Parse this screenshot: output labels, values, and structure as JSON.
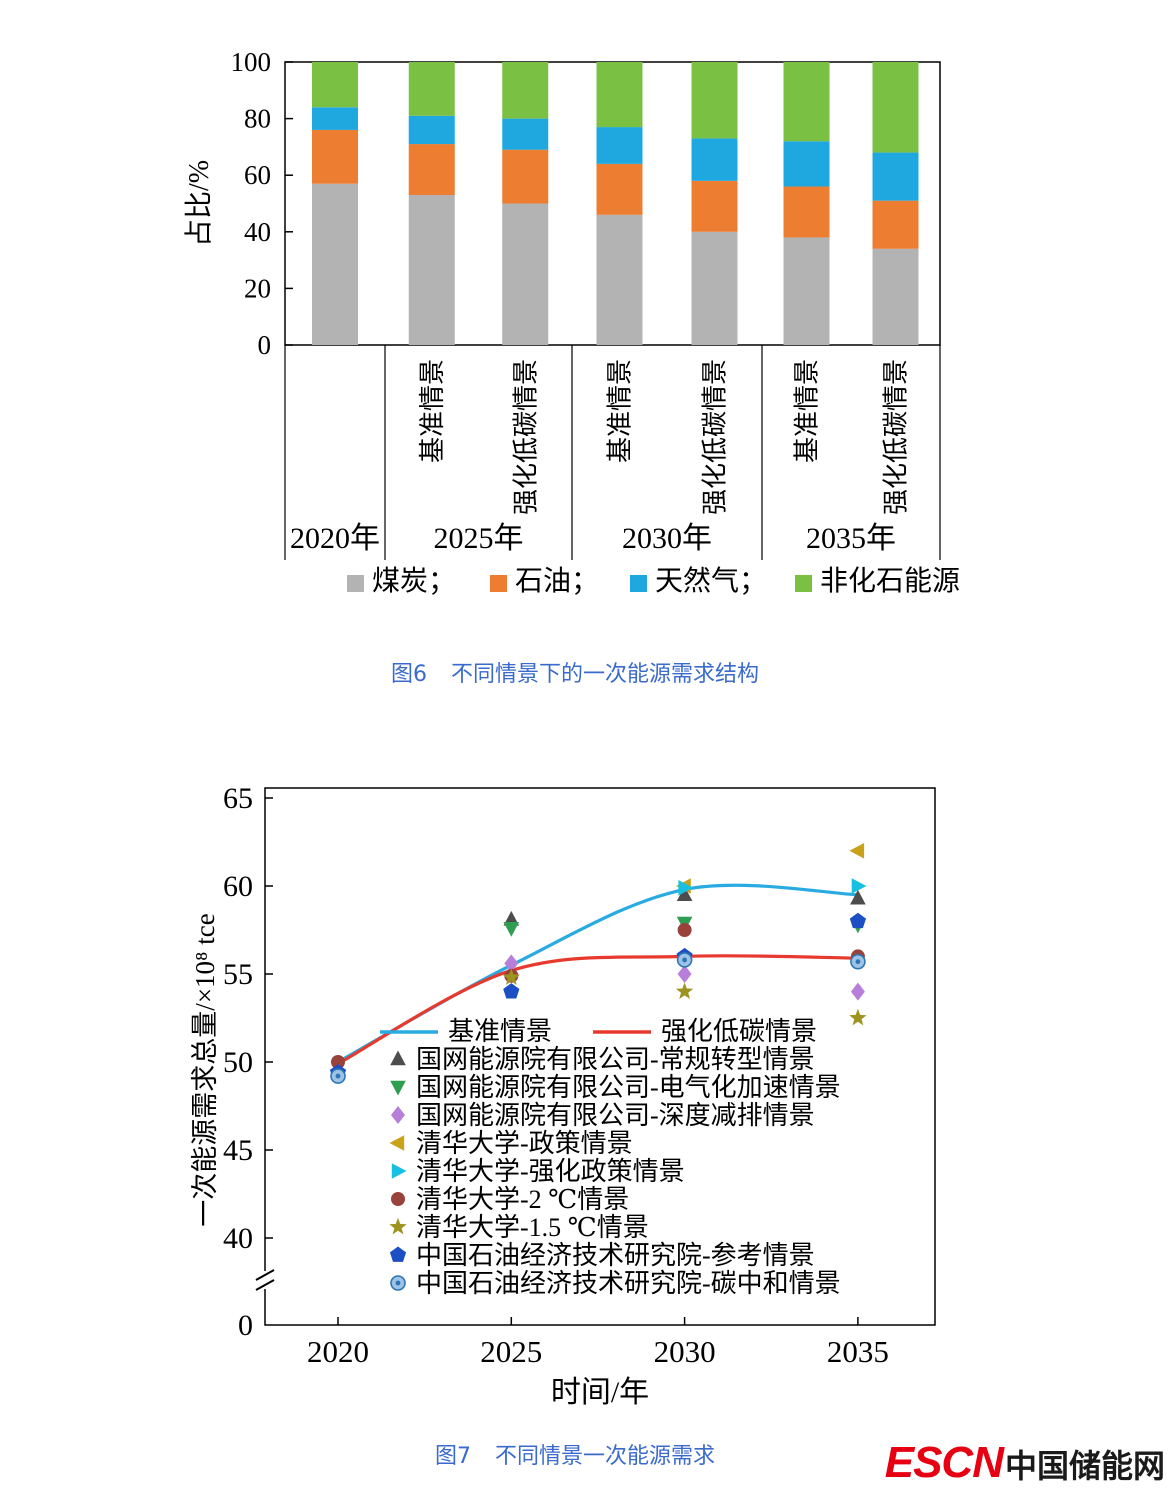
{
  "colors": {
    "caption": "#3a6bcc",
    "axis": "#000000",
    "escn_red": "#e60012",
    "site_text": "#1a1a1a"
  },
  "figure6": {
    "caption_label": "图6",
    "caption_text": "不同情景下的一次能源需求结构",
    "chart_data": {
      "type": "stacked-bar",
      "ylabel": "占比/%",
      "ylim": [
        0,
        100
      ],
      "y_ticks": [
        "0",
        "20",
        "40",
        "60",
        "80",
        "100"
      ],
      "series_names": [
        "煤炭",
        "石油",
        "天然气",
        "非化石能源"
      ],
      "series_colors": [
        "#b3b3b3",
        "#ed7d31",
        "#1fa8e0",
        "#7ac143"
      ],
      "groups": [
        {
          "year": "2020年",
          "bars": [
            {
              "scenario": "",
              "values": [
                57,
                19,
                8,
                16
              ]
            }
          ]
        },
        {
          "year": "2025年",
          "bars": [
            {
              "scenario": "基准情景",
              "values": [
                53,
                18,
                10,
                19
              ]
            },
            {
              "scenario": "强化低碳情景",
              "values": [
                50,
                19,
                11,
                20
              ]
            }
          ]
        },
        {
          "year": "2030年",
          "bars": [
            {
              "scenario": "基准情景",
              "values": [
                46,
                18,
                13,
                23
              ]
            },
            {
              "scenario": "强化低碳情景",
              "values": [
                40,
                18,
                15,
                27
              ]
            }
          ]
        },
        {
          "year": "2035年",
          "bars": [
            {
              "scenario": "基准情景",
              "values": [
                38,
                18,
                16,
                28
              ]
            },
            {
              "scenario": "强化低碳情景",
              "values": [
                34,
                17,
                17,
                32
              ]
            }
          ]
        }
      ],
      "legend": [
        {
          "label": "煤炭；",
          "color": "#b3b3b3"
        },
        {
          "label": "石油；",
          "color": "#ed7d31"
        },
        {
          "label": "天然气；",
          "color": "#1fa8e0"
        },
        {
          "label": "非化石能源",
          "color": "#7ac143"
        }
      ]
    }
  },
  "figure7": {
    "caption_label": "图7",
    "caption_text": "不同情景一次能源需求",
    "chart_data": {
      "type": "line-scatter",
      "xlabel": "时间/年",
      "ylabel": "一次能源需求总量/×10⁸ tce",
      "x_ticks": [
        "2020",
        "2025",
        "2030",
        "2035"
      ],
      "y_ticks": [
        "65",
        "60",
        "55",
        "50",
        "45",
        "40"
      ],
      "y_origin_label": "0",
      "axis_break": true,
      "ylim": [
        40,
        65
      ],
      "lines": [
        {
          "name": "基准情景",
          "color": "#29abe2",
          "x": [
            2020,
            2025,
            2030,
            2035
          ],
          "y": [
            50.0,
            55.5,
            59.8,
            59.5
          ]
        },
        {
          "name": "强化低碳情景",
          "color": "#e8392e",
          "x": [
            2020,
            2025,
            2030,
            2035
          ],
          "y": [
            49.9,
            55.2,
            56.0,
            55.9
          ]
        }
      ],
      "scatter": [
        {
          "name": "国网能源院有限公司-常规转型情景",
          "marker": "triangle-up",
          "color": "#4d4d4d",
          "points": [
            [
              2025,
              58.1
            ],
            [
              2030,
              59.5
            ],
            [
              2035,
              59.3
            ]
          ]
        },
        {
          "name": "国网能源院有限公司-电气化加速情景",
          "marker": "triangle-down",
          "color": "#2e9e50",
          "points": [
            [
              2025,
              57.6
            ],
            [
              2030,
              57.9
            ],
            [
              2035,
              57.8
            ]
          ]
        },
        {
          "name": "国网能源院有限公司-深度减排情景",
          "marker": "diamond",
          "color": "#b77fd9",
          "points": [
            [
              2025,
              55.6
            ],
            [
              2030,
              55.0
            ],
            [
              2035,
              54.0
            ]
          ]
        },
        {
          "name": "清华大学-政策情景",
          "marker": "triangle-left",
          "color": "#c9a21a",
          "points": [
            [
              2030,
              60.0
            ],
            [
              2035,
              62.0
            ]
          ]
        },
        {
          "name": "清华大学-强化政策情景",
          "marker": "triangle-right",
          "color": "#17c0e0",
          "points": [
            [
              2030,
              59.9
            ],
            [
              2035,
              60.0
            ]
          ]
        },
        {
          "name": "清华大学-2 ℃情景",
          "marker": "circle",
          "color": "#99423c",
          "points": [
            [
              2020,
              50.0
            ],
            [
              2025,
              54.9
            ],
            [
              2030,
              57.5
            ],
            [
              2035,
              56.0
            ]
          ]
        },
        {
          "name": "清华大学-1.5 ℃情景",
          "marker": "star",
          "color": "#9d9420",
          "points": [
            [
              2025,
              54.8
            ],
            [
              2030,
              54.0
            ],
            [
              2035,
              52.5
            ]
          ]
        },
        {
          "name": "中国石油经济技术研究院-参考情景",
          "marker": "pentagon",
          "color": "#1d4fc4",
          "points": [
            [
              2020,
              49.4
            ],
            [
              2025,
              54.0
            ],
            [
              2030,
              56.0
            ],
            [
              2035,
              58.0
            ]
          ]
        },
        {
          "name": "中国石油经济技术研究院-碳中和情景",
          "marker": "circle-dot",
          "color": "#2e75b6",
          "fill": "#9dc3e6",
          "points": [
            [
              2020,
              49.2
            ],
            [
              2030,
              55.8
            ],
            [
              2035,
              55.7
            ]
          ]
        }
      ]
    }
  },
  "footer": {
    "escn": "ESCN",
    "site_name": "中国储能网"
  }
}
